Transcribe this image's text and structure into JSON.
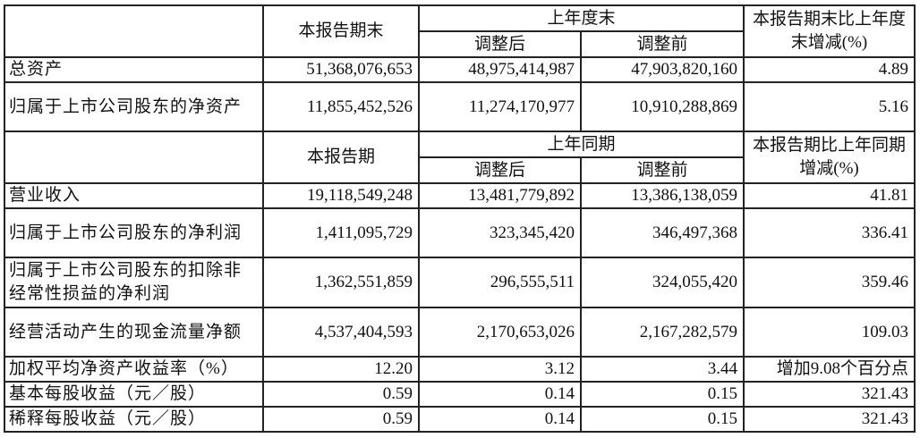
{
  "balance_header": {
    "current": "本报告期末",
    "prior": "上年度末",
    "adjusted": "调整后",
    "before_adjustment": "调整前",
    "change": "本报告期末比上年度末增减(%)"
  },
  "balance_rows": [
    {
      "label": "总资产",
      "current": "51,368,076,653",
      "adjusted": "48,975,414,987",
      "before": "47,903,820,160",
      "change": "4.89"
    },
    {
      "label": "归属于上市公司股东的净资产",
      "current": "11,855,452,526",
      "adjusted": "11,274,170,977",
      "before": "10,910,288,869",
      "change": "5.16"
    }
  ],
  "income_header": {
    "current": "本报告期",
    "prior": "上年同期",
    "adjusted": "调整后",
    "before_adjustment": "调整前",
    "change": "本报告期比上年同期增减(%)"
  },
  "income_rows": [
    {
      "label": "营业收入",
      "current": "19,118,549,248",
      "adjusted": "13,481,779,892",
      "before": "13,386,138,059",
      "change": "41.81"
    },
    {
      "label": "归属于上市公司股东的净利润",
      "current": "1,411,095,729",
      "adjusted": "323,345,420",
      "before": "346,497,368",
      "change": "336.41"
    },
    {
      "label": "归属于上市公司股东的扣除非经常性损益的净利润",
      "current": "1,362,551,859",
      "adjusted": "296,555,511",
      "before": "324,055,420",
      "change": "359.46"
    },
    {
      "label": "经营活动产生的现金流量净额",
      "current": "4,537,404,593",
      "adjusted": "2,170,653,026",
      "before": "2,167,282,579",
      "change": "109.03"
    },
    {
      "label": "加权平均净资产收益率（%）",
      "current": "12.20",
      "adjusted": "3.12",
      "before": "3.44",
      "change": "增加9.08个百分点"
    },
    {
      "label": "基本每股收益（元／股）",
      "current": "0.59",
      "adjusted": "0.14",
      "before": "0.15",
      "change": "321.43"
    },
    {
      "label": "稀释每股收益（元／股）",
      "current": "0.59",
      "adjusted": "0.14",
      "before": "0.15",
      "change": "321.43"
    }
  ]
}
